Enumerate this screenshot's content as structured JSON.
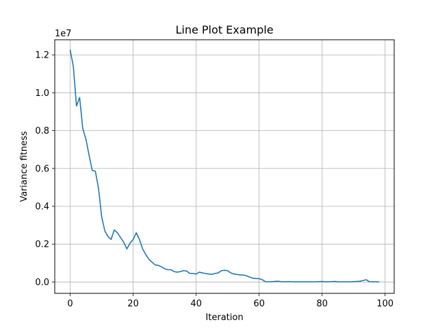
{
  "chart_data": {
    "type": "line",
    "title": "Line Plot Example",
    "xlabel": "Iteration",
    "ylabel": "Variance fitness",
    "y_offset_label": "1e7",
    "xlim": [
      -4.9,
      102.9
    ],
    "ylim": [
      -0.06,
      1.28
    ],
    "x_ticks": [
      0,
      20,
      40,
      60,
      80,
      100
    ],
    "x_tick_labels": [
      "0",
      "20",
      "40",
      "60",
      "80",
      "100"
    ],
    "y_ticks": [
      0.0,
      0.2,
      0.4,
      0.6,
      0.8,
      1.0,
      1.2
    ],
    "y_tick_labels": [
      "0.0",
      "0.2",
      "0.4",
      "0.6",
      "0.8",
      "1.0",
      "1.2"
    ],
    "grid": true,
    "line_color": "#1f77b4",
    "series": [
      {
        "x": [
          0,
          1,
          2,
          3,
          4,
          5,
          6,
          7,
          8,
          9,
          10,
          11,
          12,
          13,
          14,
          15,
          16,
          17,
          18,
          19,
          20,
          21,
          22,
          23,
          24,
          25,
          26,
          27,
          28,
          29,
          30,
          31,
          32,
          33,
          34,
          35,
          36,
          37,
          38,
          39,
          40,
          41,
          42,
          43,
          44,
          45,
          46,
          47,
          48,
          49,
          50,
          51,
          52,
          53,
          54,
          55,
          56,
          57,
          58,
          59,
          60,
          61,
          62,
          63,
          64,
          65,
          66,
          67,
          68,
          69,
          70,
          71,
          72,
          73,
          74,
          75,
          76,
          77,
          78,
          79,
          80,
          81,
          82,
          83,
          84,
          85,
          86,
          87,
          88,
          89,
          90,
          91,
          92,
          93,
          94,
          95,
          96,
          97,
          98
        ],
        "values": [
          1.225,
          1.14,
          0.93,
          0.975,
          0.81,
          0.755,
          0.67,
          0.59,
          0.585,
          0.495,
          0.345,
          0.27,
          0.24,
          0.225,
          0.275,
          0.26,
          0.235,
          0.21,
          0.175,
          0.205,
          0.225,
          0.26,
          0.225,
          0.175,
          0.145,
          0.12,
          0.105,
          0.09,
          0.088,
          0.08,
          0.07,
          0.065,
          0.065,
          0.055,
          0.052,
          0.055,
          0.06,
          0.058,
          0.045,
          0.045,
          0.042,
          0.052,
          0.048,
          0.045,
          0.042,
          0.04,
          0.045,
          0.048,
          0.06,
          0.062,
          0.06,
          0.048,
          0.042,
          0.04,
          0.037,
          0.037,
          0.033,
          0.026,
          0.02,
          0.018,
          0.018,
          0.012,
          0.002,
          0.001,
          0.002,
          0.003,
          0.004,
          0.002,
          0.001,
          0.002,
          0.002,
          0.001,
          0.001,
          0.001,
          0.001,
          0.001,
          0.001,
          0.001,
          0.001,
          0.002,
          0.003,
          0.001,
          0.001,
          0.002,
          0.003,
          0.001,
          0.001,
          0.001,
          0.001,
          0.001,
          0.002,
          0.003,
          0.004,
          0.008,
          0.012,
          0.002,
          0.001,
          0.001,
          0.001
        ]
      }
    ]
  }
}
